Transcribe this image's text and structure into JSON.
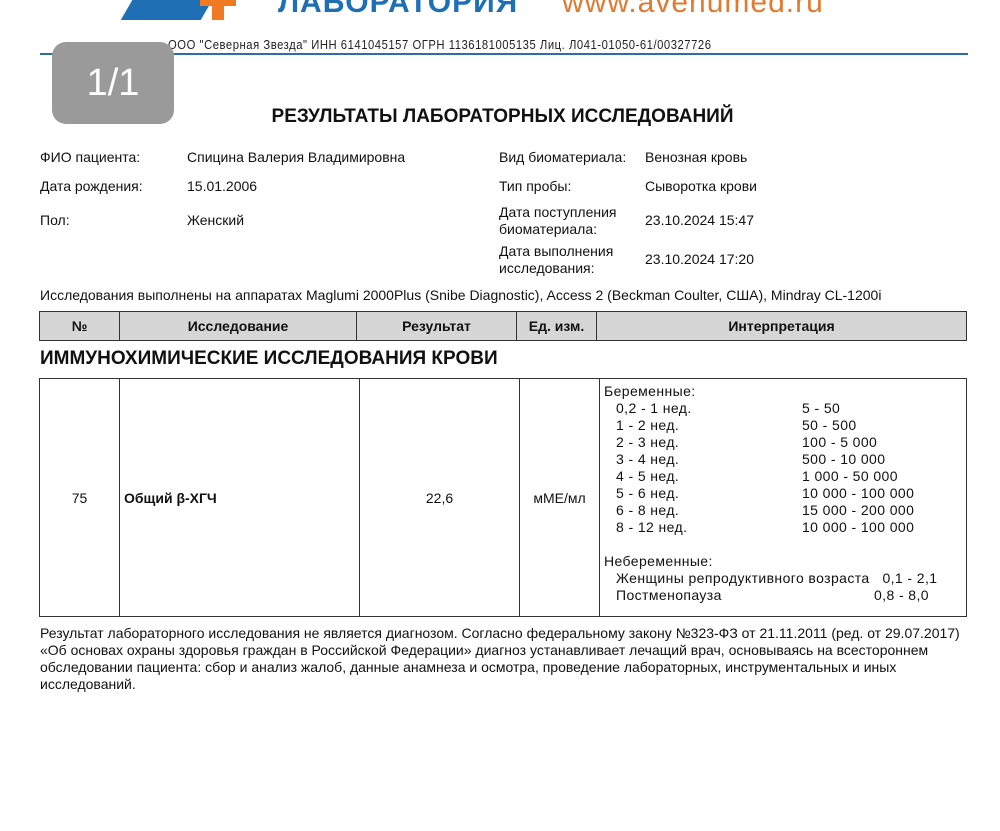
{
  "header": {
    "lab_name": "ЛАБОРАТОРИЯ",
    "website": "www.avenumed.ru",
    "org_line": "ООО \"Северная Звезда\" ИНН 6141045157 ОГРН 1136181005135 Лиц. Л041-01050-61/00327726",
    "page_indicator": "1/1"
  },
  "title": "РЕЗУЛЬТАТЫ ЛАБОРАТОРНЫХ ИССЛЕДОВАНИЙ",
  "patient": {
    "name_label": "ФИО пациента:",
    "name": "Спицина Валерия Владимировна",
    "dob_label": "Дата рождения:",
    "dob": "15.01.2006",
    "sex_label": "Пол:",
    "sex": "Женский",
    "biomaterial_label": "Вид биоматериала:",
    "biomaterial": "Венозная кровь",
    "sample_label": "Тип пробы:",
    "sample": "Сыворотка крови",
    "received_label": "Дата поступления биоматериала:",
    "received": "23.10.2024 15:47",
    "done_label": "Дата выполнения исследования:",
    "done": "23.10.2024 17:20"
  },
  "equipment": "Исследования выполнены на аппаратах Maglumi 2000Plus (Snibe Diagnostic), Access 2 (Beckman Coulter, США), Mindray CL-1200i",
  "table": {
    "headers": [
      "№",
      "Исследование",
      "Результат",
      "Ед. изм.",
      "Интерпретация"
    ]
  },
  "section": "ИММУНОХИМИЧЕСКИЕ ИССЛЕДОВАНИЯ КРОВИ",
  "row": {
    "num": "75",
    "test": "Общий β-ХГЧ",
    "result": "22,6",
    "unit": "мМЕ/мл"
  },
  "interpretation": {
    "pregnant_label": "Беременные:",
    "pregnant": [
      [
        "0,2 - 1 нед.",
        "5 - 50"
      ],
      [
        "1 - 2 нед.",
        "50 - 500"
      ],
      [
        "2 - 3 нед.",
        "100 - 5 000"
      ],
      [
        "3 - 4 нед.",
        "500 - 10 000"
      ],
      [
        "4 - 5 нед.",
        "1 000 - 50 000"
      ],
      [
        "5 - 6 нед.",
        "10 000 - 100 000"
      ],
      [
        "6 - 8 нед.",
        "15 000 - 200 000"
      ],
      [
        "8 - 12 нед.",
        "10 000 - 100 000"
      ]
    ],
    "nonpregnant_label": "Небеременные:",
    "reproductive": "Женщины репродуктивного возраста",
    "reproductive_range": "0,1 - 2,1",
    "postmenopause": "Постменопауза",
    "postmenopause_range": "0,8 - 8,0"
  },
  "disclaimer": "Результат лабораторного исследования не является диагнозом. Согласно федеральному закону №323-ФЗ от 21.11.2011 (ред. от 29.07.2017) «Об основах охраны здоровья граждан в Российской Федерации» диагноз устанавливает лечащий врач, основываясь на всестороннем обследовании пациента: сбор и анализ жалоб, данные анамнеза и осмотра, проведение лабораторных, инструментальных и иных исследований."
}
